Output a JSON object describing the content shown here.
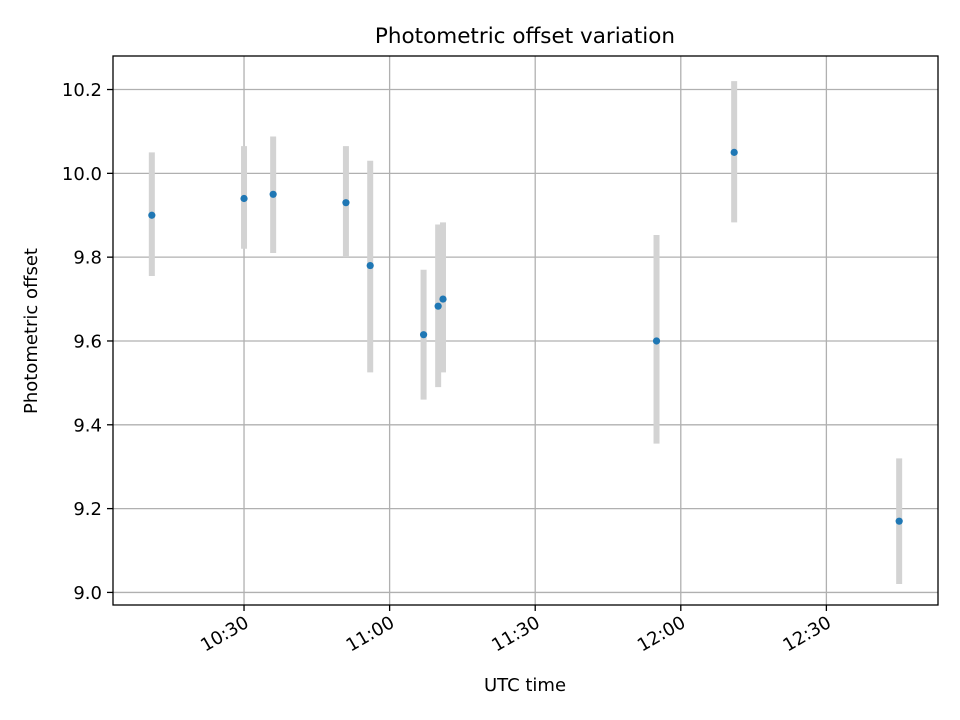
{
  "chart_data": {
    "type": "scatter",
    "title": "Photometric offset variation",
    "xlabel": "UTC time",
    "ylabel": "Photometric offset",
    "x_axis_type": "time",
    "xlim": [
      "10:03",
      "12:53"
    ],
    "ylim": [
      8.97,
      10.28
    ],
    "x_ticks": [
      "10:30",
      "11:00",
      "11:30",
      "12:00",
      "12:30"
    ],
    "y_ticks": [
      9.0,
      9.2,
      9.4,
      9.6,
      9.8,
      10.0,
      10.2
    ],
    "y_tick_labels": [
      "9.0",
      "9.2",
      "9.4",
      "9.6",
      "9.8",
      "10.0",
      "10.2"
    ],
    "grid": true,
    "points": [
      {
        "x": "10:11",
        "y": 9.9,
        "err_low": 9.755,
        "err_high": 10.05
      },
      {
        "x": "10:30",
        "y": 9.94,
        "err_low": 9.82,
        "err_high": 10.065
      },
      {
        "x": "10:36",
        "y": 9.95,
        "err_low": 9.81,
        "err_high": 10.088
      },
      {
        "x": "10:51",
        "y": 9.93,
        "err_low": 9.8,
        "err_high": 10.065
      },
      {
        "x": "10:56",
        "y": 9.78,
        "err_low": 9.525,
        "err_high": 10.03
      },
      {
        "x": "11:07",
        "y": 9.615,
        "err_low": 9.46,
        "err_high": 9.77
      },
      {
        "x": "11:10",
        "y": 9.683,
        "err_low": 9.49,
        "err_high": 9.878
      },
      {
        "x": "11:11",
        "y": 9.7,
        "err_low": 9.525,
        "err_high": 9.883
      },
      {
        "x": "11:55",
        "y": 9.6,
        "err_low": 9.355,
        "err_high": 9.853
      },
      {
        "x": "12:11",
        "y": 10.05,
        "err_low": 9.883,
        "err_high": 10.22
      },
      {
        "x": "12:45",
        "y": 9.17,
        "err_low": 9.02,
        "err_high": 9.32
      }
    ],
    "colors": {
      "point": "#1f77b4",
      "errorbar": "#d3d3d3",
      "grid": "#b0b0b0",
      "axis": "#000000"
    }
  }
}
